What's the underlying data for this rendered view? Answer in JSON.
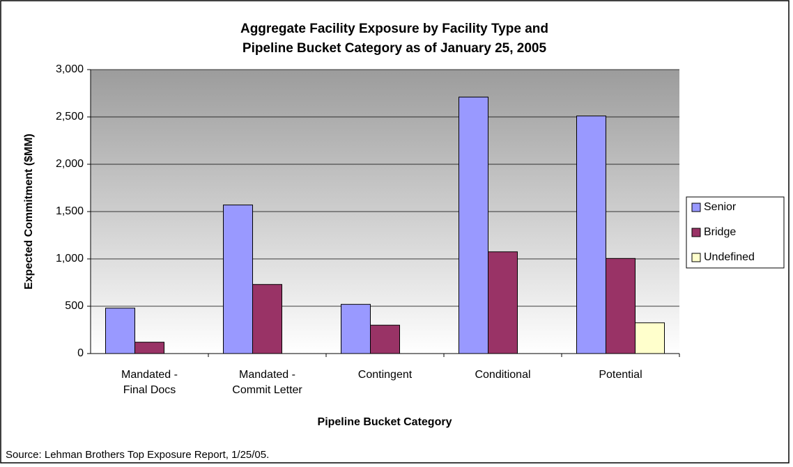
{
  "chart_data": {
    "type": "bar",
    "title": [
      "Aggregate Facility Exposure by Facility Type and",
      "Pipeline Bucket Category as of January 25, 2005"
    ],
    "x_label": "Pipeline Bucket Category",
    "y_label": "Expected Commitment ($MM)",
    "source": "Source:  Lehman Brothers Top Exposure Report, 1/25/05.",
    "categories": [
      "Mandated -\nFinal Docs",
      "Mandated -\nCommit Letter",
      "Contingent",
      "Conditional",
      "Potential"
    ],
    "series": [
      {
        "name": "Senior",
        "color": "#9999ff",
        "values": [
          480,
          1570,
          520,
          2710,
          2510
        ]
      },
      {
        "name": "Bridge",
        "color": "#993366",
        "values": [
          120,
          730,
          300,
          1075,
          1005
        ]
      },
      {
        "name": "Undefined",
        "color": "#ffffcc",
        "values": [
          null,
          null,
          null,
          null,
          325
        ]
      }
    ],
    "ylim": [
      0,
      3000
    ],
    "yticks": [
      0,
      500,
      {
        "value": 1000,
        "label": "1,000"
      },
      {
        "value": 1500,
        "label": "1,500"
      },
      {
        "value": 2000,
        "label": "2,000"
      },
      {
        "value": 2500,
        "label": "2,500"
      },
      {
        "value": 3000,
        "label": "3,000"
      }
    ],
    "grid": true,
    "legend": "right"
  }
}
